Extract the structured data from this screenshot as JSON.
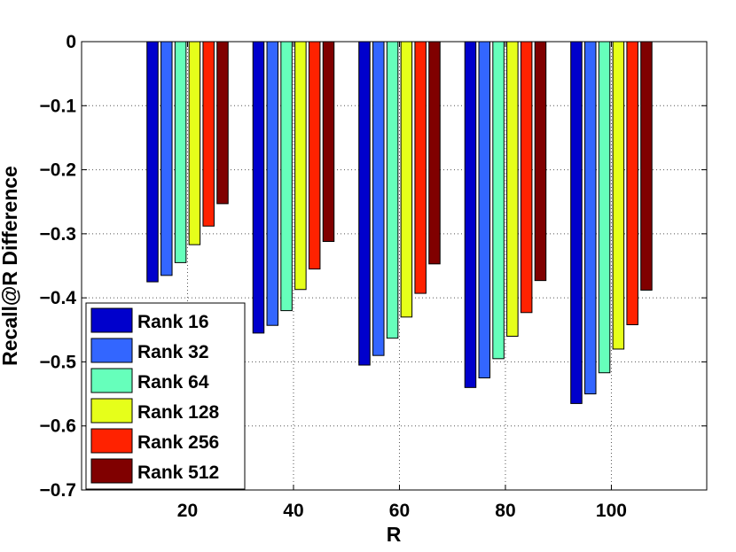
{
  "chart_data": {
    "type": "bar",
    "title": "",
    "xlabel": "R",
    "ylabel": "Recall@R Difference",
    "categories": [
      "20",
      "40",
      "60",
      "80",
      "100"
    ],
    "ylim": [
      -0.7,
      0
    ],
    "yticks": [
      "0",
      "−0.1",
      "−0.2",
      "−0.3",
      "−0.4",
      "−0.5",
      "−0.6",
      "−0.7"
    ],
    "grid": true,
    "legend_position": "bottom-left",
    "series": [
      {
        "name": "Rank 16",
        "color": "#0000cc",
        "values": [
          -0.375,
          -0.455,
          -0.505,
          -0.54,
          -0.565
        ]
      },
      {
        "name": "Rank 32",
        "color": "#3366ff",
        "values": [
          -0.365,
          -0.443,
          -0.49,
          -0.525,
          -0.55
        ]
      },
      {
        "name": "Rank 64",
        "color": "#66ffbb",
        "values": [
          -0.345,
          -0.42,
          -0.463,
          -0.495,
          -0.517
        ]
      },
      {
        "name": "Rank 128",
        "color": "#e6ff1a",
        "values": [
          -0.317,
          -0.387,
          -0.43,
          -0.46,
          -0.48
        ]
      },
      {
        "name": "Rank 256",
        "color": "#ff2200",
        "values": [
          -0.288,
          -0.355,
          -0.393,
          -0.423,
          -0.442
        ]
      },
      {
        "name": "Rank 512",
        "color": "#800000",
        "values": [
          -0.253,
          -0.312,
          -0.347,
          -0.373,
          -0.388
        ]
      }
    ]
  }
}
